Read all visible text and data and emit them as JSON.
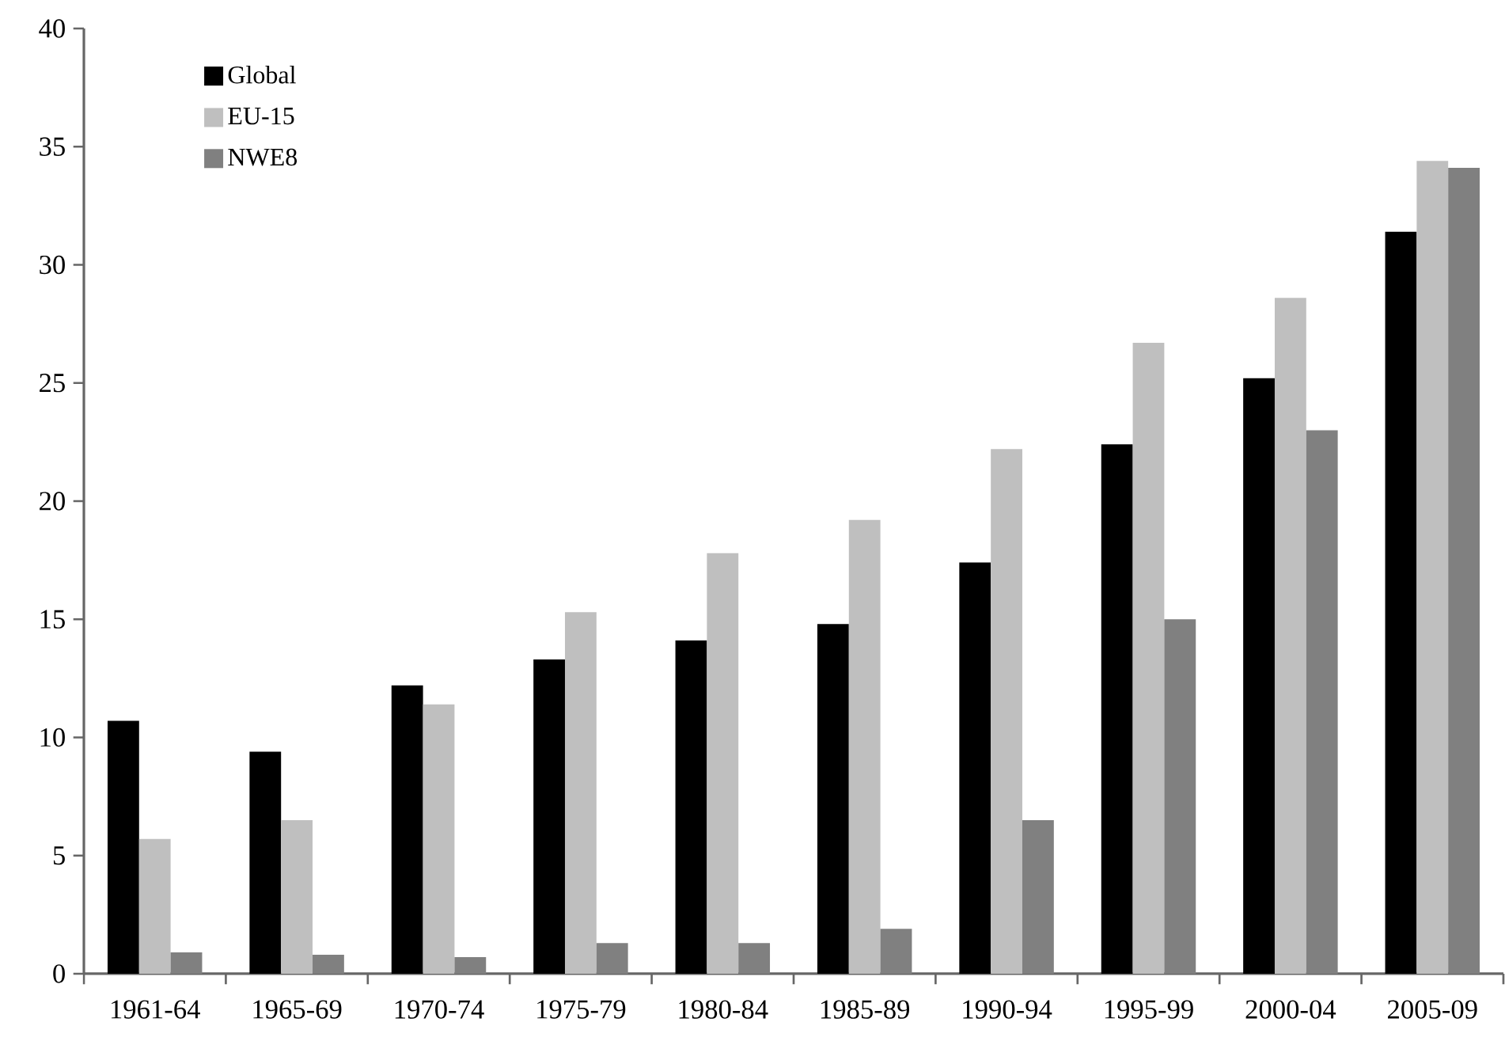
{
  "chart_data": {
    "type": "bar",
    "categories": [
      "1961-64",
      "1965-69",
      "1970-74",
      "1975-79",
      "1980-84",
      "1985-89",
      "1990-94",
      "1995-99",
      "2000-04",
      "2005-09"
    ],
    "series": [
      {
        "name": "Global",
        "color": "#000000",
        "values": [
          10.7,
          9.4,
          12.2,
          13.3,
          14.1,
          14.8,
          17.4,
          22.4,
          25.2,
          31.4
        ]
      },
      {
        "name": "EU-15",
        "color": "#bfbfbf",
        "values": [
          5.7,
          6.5,
          11.4,
          15.3,
          17.8,
          19.2,
          22.2,
          26.7,
          28.6,
          34.4
        ]
      },
      {
        "name": "NWE8",
        "color": "#808080",
        "values": [
          0.9,
          0.8,
          0.7,
          1.3,
          1.3,
          1.9,
          6.5,
          15.0,
          23.0,
          34.1
        ]
      }
    ],
    "ylim": [
      0,
      40
    ],
    "yticks": [
      0,
      5,
      10,
      15,
      20,
      25,
      30,
      35,
      40
    ],
    "grid": false,
    "legend": "top left"
  }
}
